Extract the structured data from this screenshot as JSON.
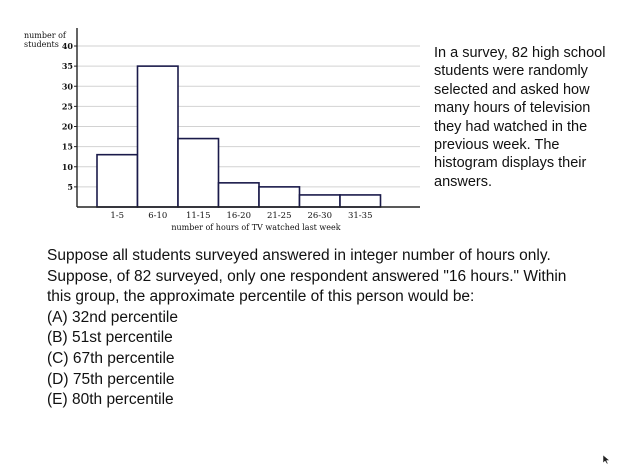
{
  "chart_data": {
    "type": "bar",
    "categories": [
      "1-5",
      "6-10",
      "11-15",
      "16-20",
      "21-25",
      "26-30",
      "31-35"
    ],
    "values": [
      13,
      35,
      17,
      6,
      5,
      3,
      3
    ],
    "ylabel": "number of students",
    "xlabel": "number of hours of TV watched last week",
    "ylim": [
      0,
      40
    ],
    "yticks": [
      5,
      10,
      15,
      20,
      25,
      30,
      35,
      40
    ],
    "grid": true,
    "colors": {
      "bar_fill": "#ffffff",
      "bar_edge": "#1a1a4a",
      "grid": "#d2d2d2",
      "axis": "#222222"
    }
  },
  "survey_text": "In a survey, 82 high school students were randomly selected and asked how many hours of television they had watched in the previous week.  The histogram displays their answers.",
  "question": {
    "text": "Suppose all students surveyed answered in integer number of hours only.  Suppose, of 82 surveyed, only one respondent answered \"16 hours.\"  Within this group, the approximate percentile of this person would be:",
    "choices": [
      "(A) 32nd percentile",
      "(B) 51st percentile",
      "(C) 67th percentile",
      "(D) 75th percentile",
      "(E) 80th percentile"
    ]
  },
  "cursor_icon": "mouse-pointer-icon"
}
